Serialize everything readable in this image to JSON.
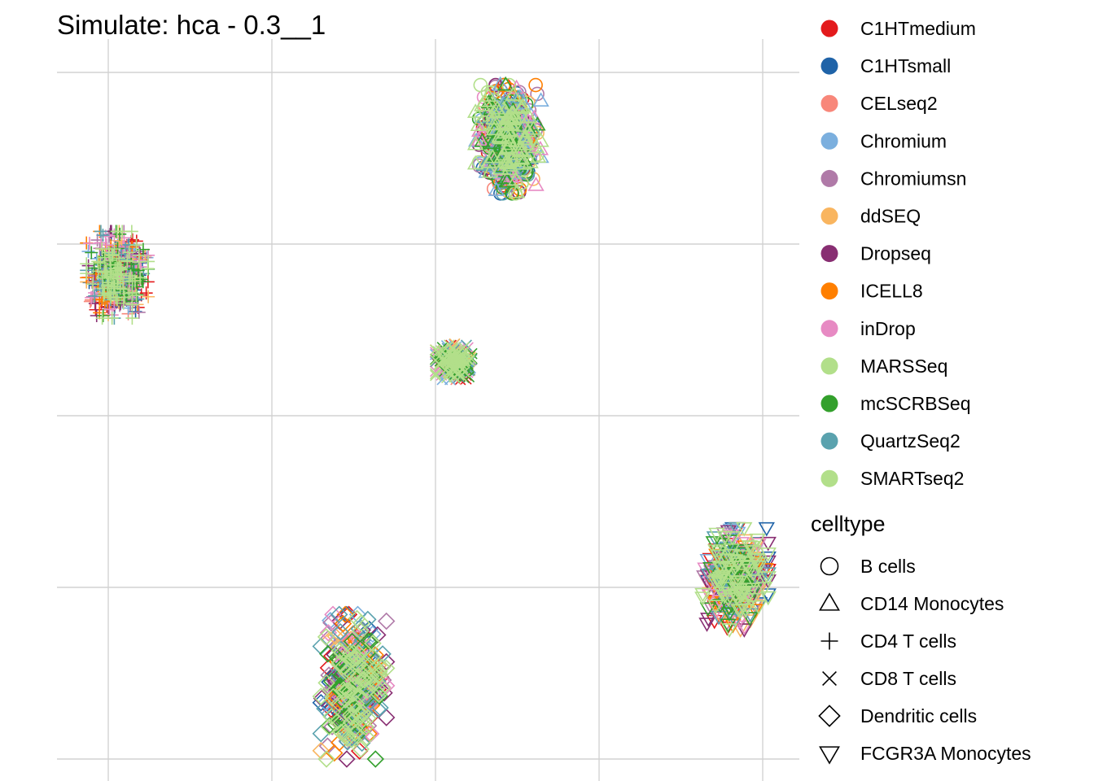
{
  "chart_data": {
    "type": "scatter",
    "title": "Simulate: hca - 0.3__1",
    "xlabel": "",
    "ylabel": "",
    "grid": true,
    "legend_position": "right",
    "color_legend": {
      "title": "",
      "entries": [
        {
          "label": "C1HTmedium",
          "color": "#E31A1C"
        },
        {
          "label": "C1HTsmall",
          "color": "#1F63A8"
        },
        {
          "label": "CELseq2",
          "color": "#F8877A"
        },
        {
          "label": "Chromium",
          "color": "#7BAFDE"
        },
        {
          "label": "Chromiumsn",
          "color": "#B07AA8"
        },
        {
          "label": "ddSEQ",
          "color": "#F9B55F"
        },
        {
          "label": "Dropseq",
          "color": "#882E72"
        },
        {
          "label": "ICELL8",
          "color": "#FF7F00"
        },
        {
          "label": "inDrop",
          "color": "#E78AC3"
        },
        {
          "label": "MARSSeq",
          "color": "#B2DF8A"
        },
        {
          "label": "mcSCRBSeq",
          "color": "#33A02C"
        },
        {
          "label": "QuartzSeq2",
          "color": "#5AA2AE"
        },
        {
          "label": "SMARTseq2",
          "color": "#B2DF8A"
        }
      ]
    },
    "shape_legend": {
      "title": "celltype",
      "entries": [
        {
          "label": "B cells",
          "shape": "circle"
        },
        {
          "label": "CD14 Monocytes",
          "shape": "triangle-up"
        },
        {
          "label": "CD4 T cells",
          "shape": "plus"
        },
        {
          "label": "CD8 T cells",
          "shape": "cross"
        },
        {
          "label": "Dendritic cells",
          "shape": "diamond"
        },
        {
          "label": "FCGR3A Monocytes",
          "shape": "triangle-down"
        }
      ]
    },
    "xlim": [
      -1.6,
      2.3
    ],
    "ylim": [
      -2.0,
      2.1
    ],
    "x_gridlines": [
      -1.3,
      -0.4,
      0.5,
      1.4,
      2.3
    ],
    "y_gridlines": [
      1.9,
      0.95,
      0.0,
      -0.95,
      -1.9
    ],
    "clusters": [
      {
        "celltype": "B cells",
        "shape": "circle",
        "x": 0.9,
        "y": 1.53,
        "spread_x": 0.16,
        "spread_y": 0.3,
        "series": [
          "C1HTmedium",
          "C1HTsmall",
          "CELseq2",
          "Chromium",
          "Chromiumsn",
          "ddSEQ",
          "Dropseq",
          "ICELL8",
          "inDrop",
          "QuartzSeq2",
          "mcSCRBSeq",
          "MARSSeq",
          "SMARTseq2"
        ]
      },
      {
        "celltype": "CD14 Monocytes",
        "shape": "triangle-up",
        "x": 0.9,
        "y": 1.53,
        "spread_x": 0.18,
        "spread_y": 0.3,
        "series": [
          "Chromium",
          "inDrop",
          "QuartzSeq2",
          "mcSCRBSeq",
          "MARSSeq",
          "SMARTseq2"
        ]
      },
      {
        "celltype": "CD4 T cells",
        "shape": "plus",
        "x": -1.25,
        "y": 0.78,
        "spread_x": 0.17,
        "spread_y": 0.24,
        "series": [
          "C1HTmedium",
          "C1HTsmall",
          "CELseq2",
          "Chromium",
          "Chromiumsn",
          "ddSEQ",
          "Dropseq",
          "ICELL8",
          "inDrop",
          "QuartzSeq2",
          "mcSCRBSeq",
          "MARSSeq",
          "SMARTseq2"
        ]
      },
      {
        "celltype": "CD8 T cells",
        "shape": "cross",
        "x": 0.6,
        "y": 0.3,
        "spread_x": 0.1,
        "spread_y": 0.1,
        "series": [
          "C1HTmedium",
          "CELseq2",
          "Chromium",
          "inDrop",
          "ddSEQ",
          "QuartzSeq2",
          "mcSCRBSeq",
          "MARSSeq",
          "SMARTseq2"
        ]
      },
      {
        "celltype": "Dendritic cells",
        "shape": "diamond",
        "x": 0.05,
        "y": -1.5,
        "spread_x": 0.18,
        "spread_y": 0.4,
        "series": [
          "C1HTmedium",
          "C1HTsmall",
          "Chromium",
          "Chromiumsn",
          "ddSEQ",
          "Dropseq",
          "ICELL8",
          "inDrop",
          "QuartzSeq2",
          "mcSCRBSeq",
          "MARSSeq",
          "SMARTseq2"
        ]
      },
      {
        "celltype": "FCGR3A Monocytes",
        "shape": "triangle-down",
        "x": 2.15,
        "y": -0.9,
        "spread_x": 0.18,
        "spread_y": 0.28,
        "series": [
          "C1HTmedium",
          "C1HTsmall",
          "Chromium",
          "Chromiumsn",
          "ddSEQ",
          "Dropseq",
          "ICELL8",
          "inDrop",
          "QuartzSeq2",
          "mcSCRBSeq",
          "MARSSeq",
          "SMARTseq2"
        ]
      }
    ]
  }
}
